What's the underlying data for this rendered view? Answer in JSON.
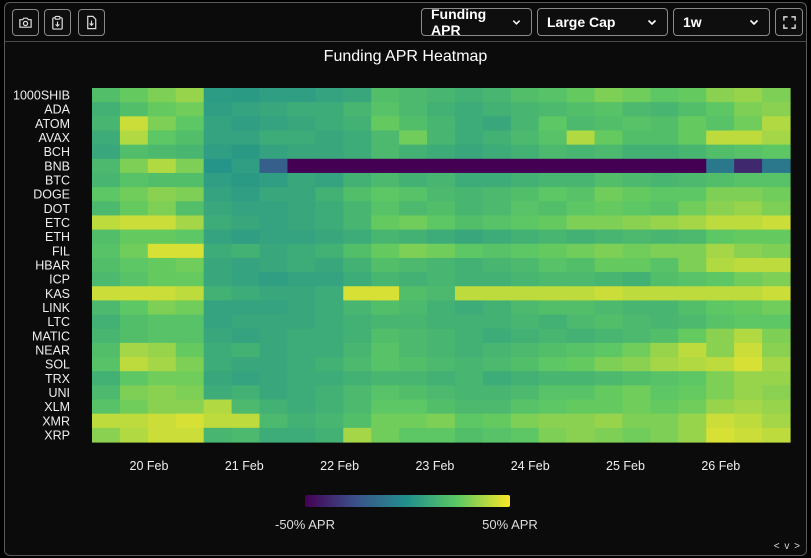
{
  "toolbar": {
    "buttons": [
      "camera-icon",
      "clipboard-icon",
      "download-icon"
    ],
    "selects": [
      {
        "name": "metric",
        "value": "Funding APR"
      },
      {
        "name": "cap",
        "value": "Large Cap"
      },
      {
        "name": "range",
        "value": "1w"
      }
    ],
    "fullscreen_icon": "fullscreen-icon"
  },
  "footer_nav": "< v >",
  "chart_data": {
    "type": "heatmap",
    "title": "Funding APR Heatmap",
    "rows": [
      "1000SHIB",
      "ADA",
      "ATOM",
      "AVAX",
      "BCH",
      "BNB",
      "BTC",
      "DOGE",
      "DOT",
      "ETC",
      "ETH",
      "FIL",
      "HBAR",
      "ICP",
      "KAS",
      "LINK",
      "LTC",
      "MATIC",
      "NEAR",
      "SOL",
      "TRX",
      "UNI",
      "XLM",
      "XMR",
      "XRP"
    ],
    "x_ticks": [
      "20 Feb",
      "21 Feb",
      "22 Feb",
      "23 Feb",
      "24 Feb",
      "25 Feb",
      "26 Feb"
    ],
    "colorscale": [
      "#440154",
      "#3b528b",
      "#21918c",
      "#5ec962",
      "#fde725"
    ],
    "zmin": -50,
    "zmax": 50,
    "colorbar_labels": [
      "-50% APR",
      "50% APR"
    ],
    "values": [
      [
        20,
        26,
        30,
        34,
        5,
        4,
        6,
        6,
        8,
        10,
        20,
        18,
        16,
        14,
        16,
        20,
        22,
        26,
        30,
        28,
        24,
        26,
        32,
        34,
        30
      ],
      [
        14,
        20,
        26,
        28,
        6,
        8,
        10,
        12,
        12,
        16,
        22,
        18,
        14,
        12,
        14,
        16,
        18,
        20,
        22,
        18,
        16,
        20,
        24,
        30,
        32
      ],
      [
        16,
        42,
        30,
        24,
        8,
        6,
        8,
        10,
        12,
        14,
        26,
        20,
        16,
        12,
        10,
        16,
        24,
        18,
        20,
        22,
        20,
        26,
        22,
        28,
        38
      ],
      [
        12,
        38,
        24,
        20,
        8,
        8,
        12,
        12,
        10,
        12,
        18,
        28,
        16,
        12,
        14,
        18,
        22,
        38,
        26,
        20,
        20,
        26,
        40,
        40,
        36
      ],
      [
        10,
        20,
        18,
        16,
        6,
        4,
        8,
        10,
        10,
        12,
        18,
        14,
        12,
        10,
        12,
        14,
        18,
        16,
        18,
        14,
        14,
        16,
        20,
        22,
        24
      ],
      [
        18,
        30,
        38,
        30,
        2,
        6,
        -20,
        -50,
        -50,
        -50,
        -50,
        -50,
        -50,
        -50,
        -50,
        -50,
        -50,
        -50,
        -50,
        -50,
        -50,
        -50,
        -10,
        -38,
        -10
      ],
      [
        16,
        22,
        20,
        20,
        6,
        4,
        6,
        10,
        8,
        14,
        18,
        14,
        16,
        12,
        12,
        14,
        16,
        16,
        20,
        18,
        16,
        18,
        20,
        22,
        22
      ],
      [
        24,
        28,
        32,
        30,
        8,
        6,
        10,
        10,
        14,
        20,
        24,
        22,
        18,
        16,
        18,
        20,
        24,
        22,
        28,
        26,
        24,
        24,
        30,
        30,
        28
      ],
      [
        18,
        26,
        30,
        20,
        10,
        8,
        8,
        10,
        12,
        16,
        22,
        18,
        20,
        16,
        18,
        22,
        20,
        24,
        26,
        24,
        22,
        28,
        32,
        34,
        30
      ],
      [
        40,
        42,
        42,
        36,
        12,
        10,
        8,
        10,
        12,
        16,
        26,
        28,
        24,
        20,
        22,
        24,
        26,
        30,
        30,
        32,
        34,
        36,
        40,
        40,
        42
      ],
      [
        20,
        26,
        26,
        24,
        8,
        6,
        8,
        8,
        10,
        12,
        16,
        14,
        12,
        10,
        12,
        14,
        16,
        14,
        16,
        18,
        16,
        18,
        24,
        26,
        26
      ],
      [
        22,
        28,
        44,
        44,
        12,
        14,
        10,
        12,
        14,
        20,
        26,
        30,
        28,
        24,
        22,
        24,
        26,
        28,
        30,
        28,
        30,
        30,
        36,
        32,
        30
      ],
      [
        20,
        24,
        26,
        28,
        10,
        8,
        10,
        12,
        10,
        14,
        20,
        18,
        16,
        14,
        16,
        18,
        22,
        20,
        26,
        26,
        22,
        30,
        38,
        40,
        40
      ],
      [
        18,
        22,
        26,
        26,
        10,
        8,
        6,
        8,
        8,
        12,
        16,
        14,
        16,
        14,
        14,
        16,
        18,
        18,
        16,
        14,
        20,
        22,
        24,
        28,
        30
      ],
      [
        42,
        42,
        42,
        40,
        14,
        12,
        10,
        10,
        12,
        44,
        44,
        20,
        18,
        40,
        40,
        40,
        40,
        40,
        42,
        40,
        40,
        40,
        40,
        40,
        42
      ],
      [
        18,
        24,
        30,
        28,
        8,
        8,
        8,
        10,
        12,
        16,
        20,
        18,
        14,
        12,
        14,
        18,
        20,
        20,
        18,
        16,
        16,
        20,
        24,
        26,
        28
      ],
      [
        14,
        20,
        22,
        22,
        8,
        10,
        10,
        10,
        12,
        14,
        16,
        16,
        14,
        14,
        14,
        16,
        14,
        18,
        20,
        18,
        16,
        18,
        22,
        24,
        24
      ],
      [
        16,
        20,
        22,
        22,
        10,
        8,
        10,
        12,
        12,
        14,
        20,
        18,
        16,
        14,
        12,
        14,
        16,
        14,
        16,
        18,
        20,
        26,
        32,
        38,
        30
      ],
      [
        20,
        36,
        34,
        26,
        12,
        14,
        10,
        12,
        12,
        16,
        22,
        18,
        16,
        14,
        16,
        18,
        20,
        22,
        24,
        28,
        34,
        40,
        32,
        42,
        32
      ],
      [
        22,
        40,
        36,
        30,
        12,
        10,
        10,
        12,
        14,
        18,
        22,
        20,
        18,
        16,
        18,
        20,
        24,
        26,
        30,
        32,
        36,
        38,
        40,
        44,
        36
      ],
      [
        14,
        24,
        28,
        28,
        10,
        8,
        10,
        12,
        12,
        14,
        16,
        16,
        14,
        16,
        12,
        14,
        16,
        16,
        18,
        20,
        22,
        24,
        30,
        34,
        34
      ],
      [
        18,
        30,
        32,
        30,
        12,
        14,
        10,
        12,
        14,
        18,
        22,
        20,
        18,
        16,
        16,
        18,
        22,
        22,
        26,
        28,
        24,
        26,
        30,
        34,
        32
      ],
      [
        22,
        28,
        32,
        32,
        38,
        18,
        14,
        12,
        14,
        18,
        24,
        24,
        20,
        18,
        18,
        22,
        24,
        26,
        26,
        28,
        26,
        28,
        34,
        36,
        34
      ],
      [
        40,
        40,
        42,
        44,
        40,
        40,
        18,
        14,
        16,
        20,
        28,
        28,
        30,
        24,
        26,
        30,
        32,
        32,
        34,
        30,
        30,
        34,
        42,
        40,
        36
      ],
      [
        32,
        38,
        42,
        42,
        16,
        18,
        12,
        12,
        14,
        36,
        28,
        24,
        24,
        20,
        22,
        24,
        30,
        32,
        30,
        28,
        30,
        34,
        44,
        42,
        40
      ]
    ]
  }
}
